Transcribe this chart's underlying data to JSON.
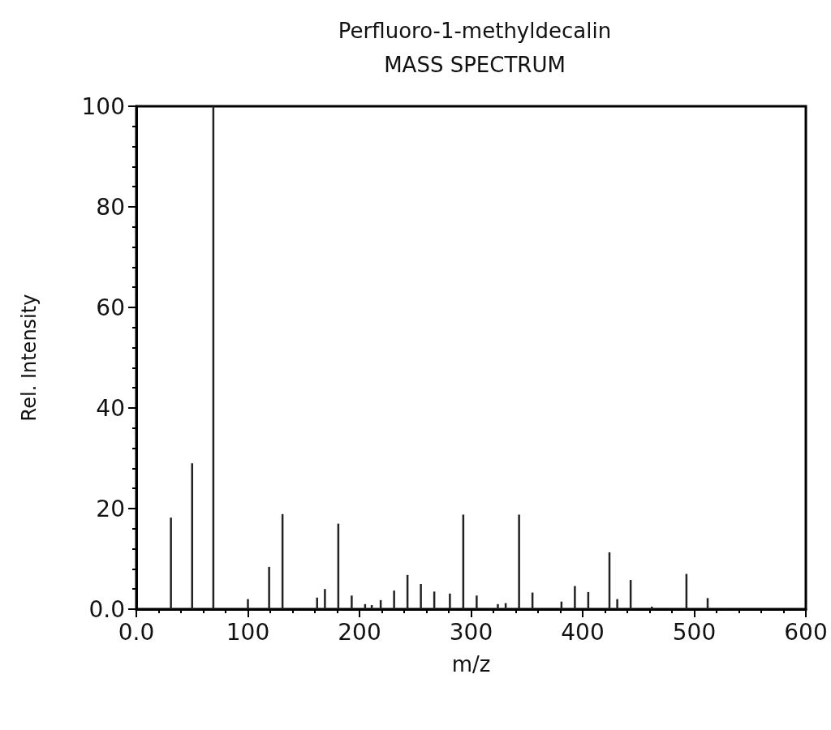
{
  "chart_data": {
    "type": "bar",
    "title": "Perfluoro-1-methyldecalin",
    "subtitle": "MASS SPECTRUM",
    "xlabel": "m/z",
    "ylabel": "Rel. Intensity",
    "x": [
      31,
      50,
      69,
      100,
      119,
      131,
      162,
      169,
      181,
      193,
      205,
      211,
      219,
      231,
      243,
      255,
      267,
      281,
      293,
      305,
      324,
      331,
      343,
      355,
      381,
      393,
      405,
      424,
      431,
      443,
      462,
      493,
      512
    ],
    "values": [
      18.2,
      29,
      100,
      2,
      8.4,
      18.9,
      2.3,
      4,
      17,
      2.7,
      1,
      0.8,
      1.8,
      3.7,
      6.8,
      5,
      3.5,
      3.1,
      18.8,
      2.7,
      1,
      1.2,
      18.8,
      3.3,
      1.5,
      4.6,
      3.4,
      11.3,
      2,
      5.8,
      0.5,
      7,
      2.2
    ],
    "color": "#222222",
    "xlim": [
      0,
      600
    ],
    "xticks": [
      {
        "value": 0,
        "label": "0.0"
      },
      100,
      200,
      300,
      400,
      500,
      600
    ],
    "ylim": [
      0,
      100
    ],
    "yticks": [
      {
        "value": 0,
        "label": "0.0"
      },
      20,
      40,
      60,
      80,
      100
    ],
    "tick_labels": "xy"
  }
}
